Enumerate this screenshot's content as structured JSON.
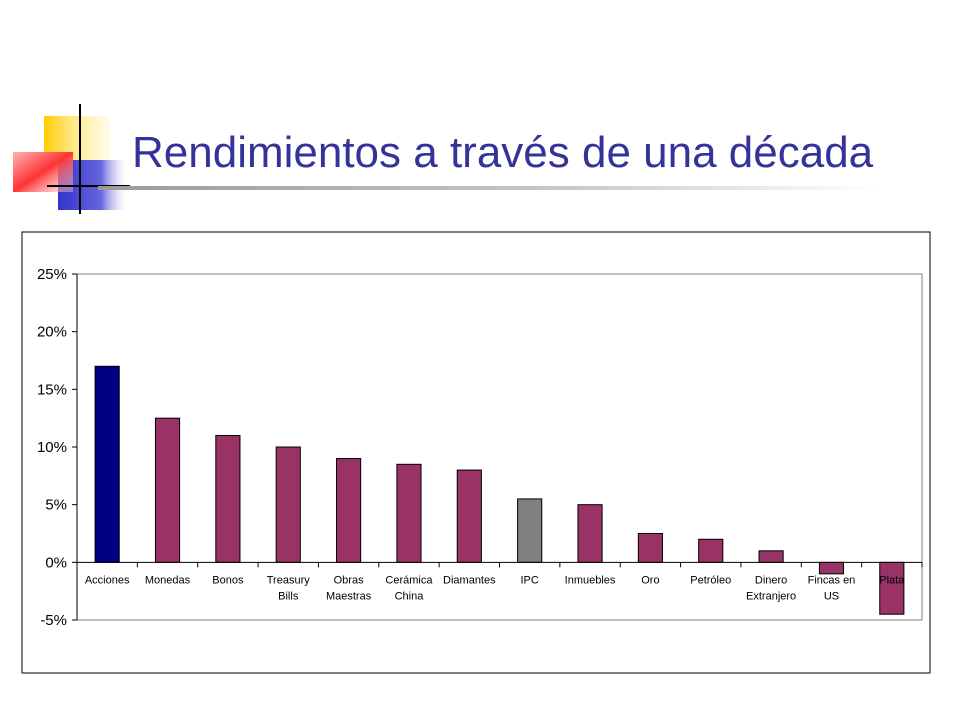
{
  "slide": {
    "title": "Rendimientos a través de una década"
  },
  "colors": {
    "title": "#333399",
    "highlight_bar": "#000080",
    "default_bar": "#993366",
    "reference_bar": "#808080"
  },
  "chart_data": {
    "type": "bar",
    "title": "",
    "xlabel": "",
    "ylabel": "",
    "ylim": [
      -5,
      25
    ],
    "yticks": [
      25,
      20,
      15,
      10,
      5,
      0,
      -5
    ],
    "ytick_labels": [
      "25%",
      "20%",
      "15%",
      "10%",
      "5%",
      "0%",
      "-5%"
    ],
    "grid": false,
    "legend": "none",
    "categories": [
      [
        "Acciones"
      ],
      [
        "Monedas"
      ],
      [
        "Bonos"
      ],
      [
        "Treasury",
        "Bills"
      ],
      [
        "Obras",
        "Maestras"
      ],
      [
        "Cerámica",
        "China"
      ],
      [
        "Diamantes"
      ],
      [
        "IPC"
      ],
      [
        "Inmuebles"
      ],
      [
        "Oro"
      ],
      [
        "Petróleo"
      ],
      [
        "Dinero",
        "Extranjero"
      ],
      [
        "Fincas en",
        "US"
      ],
      [
        "Plata"
      ]
    ],
    "values": [
      17,
      12.5,
      11,
      10,
      9,
      8.5,
      8,
      5.5,
      5,
      2.5,
      2,
      1,
      -1,
      -4.5
    ],
    "bar_colors": [
      "#000080",
      "#993366",
      "#993366",
      "#993366",
      "#993366",
      "#993366",
      "#993366",
      "#808080",
      "#993366",
      "#993366",
      "#993366",
      "#993366",
      "#993366",
      "#993366"
    ]
  }
}
